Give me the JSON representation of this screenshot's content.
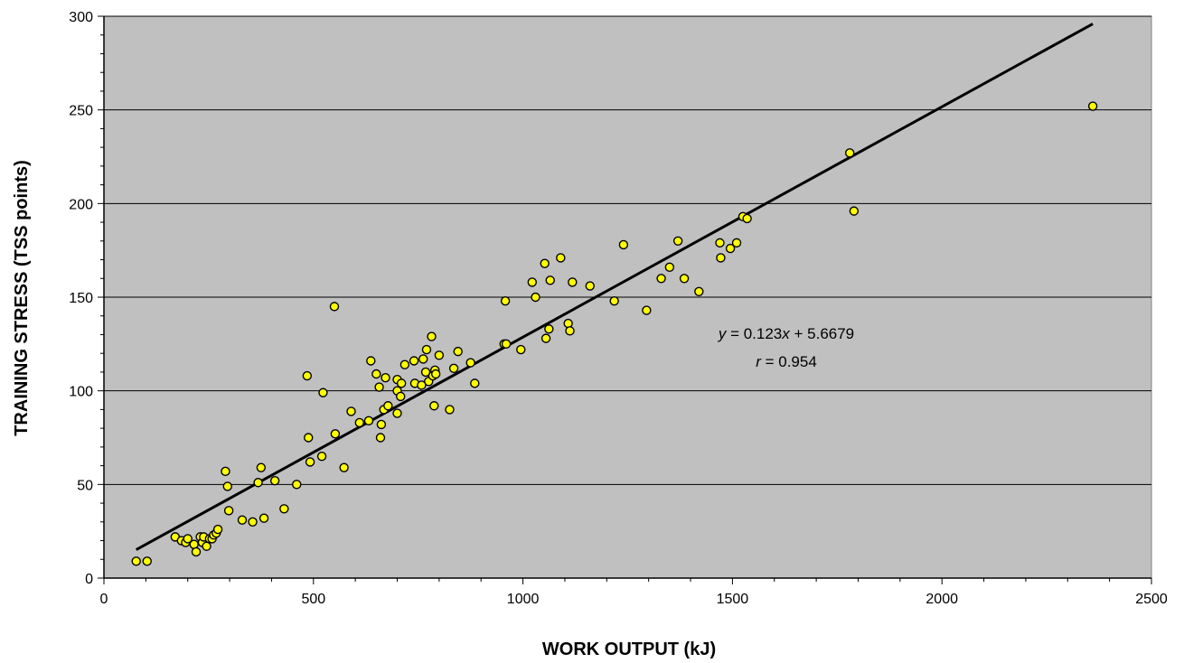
{
  "chart_data": {
    "type": "scatter",
    "title": "",
    "xlabel": "WORK OUTPUT (kJ)",
    "ylabel": "TRAINING STRESS (TSS points)",
    "xlim": [
      0,
      2500
    ],
    "ylim": [
      0,
      300
    ],
    "x_ticks": [
      0,
      500,
      1000,
      1500,
      2000,
      2500
    ],
    "y_ticks": [
      0,
      50,
      100,
      150,
      200,
      250,
      300
    ],
    "x_tick_labels": [
      "0",
      "500",
      "1000",
      "1500",
      "2000",
      "2500"
    ],
    "y_tick_labels": [
      "0",
      "50",
      "100",
      "150",
      "200",
      "250",
      "300"
    ],
    "grid": "horizontal",
    "plot_background": "#c0c0c0",
    "marker_color": "#ffff00",
    "marker_edge": "#000000",
    "trendline": {
      "slope": 0.123,
      "intercept": 5.6679,
      "x_range": [
        77,
        2360
      ]
    },
    "annotation": {
      "eq_y": "y",
      "eq_mid": " = 0.123",
      "eq_x": "x",
      "eq_end": " + 5.6679",
      "r_var": "r",
      "r_end": " = 0.954"
    },
    "points": [
      [
        77,
        9
      ],
      [
        103,
        9
      ],
      [
        170,
        22
      ],
      [
        185,
        20
      ],
      [
        195,
        19
      ],
      [
        200,
        21
      ],
      [
        215,
        18
      ],
      [
        220,
        14
      ],
      [
        230,
        22
      ],
      [
        235,
        19
      ],
      [
        238,
        22
      ],
      [
        245,
        17
      ],
      [
        252,
        21
      ],
      [
        258,
        21
      ],
      [
        262,
        23
      ],
      [
        268,
        24
      ],
      [
        272,
        26
      ],
      [
        290,
        57
      ],
      [
        295,
        49
      ],
      [
        298,
        36
      ],
      [
        330,
        31
      ],
      [
        355,
        30
      ],
      [
        368,
        51
      ],
      [
        375,
        59
      ],
      [
        382,
        32
      ],
      [
        408,
        52
      ],
      [
        430,
        37
      ],
      [
        460,
        50
      ],
      [
        485,
        108
      ],
      [
        488,
        75
      ],
      [
        492,
        62
      ],
      [
        520,
        65
      ],
      [
        523,
        99
      ],
      [
        550,
        145
      ],
      [
        552,
        77
      ],
      [
        573,
        59
      ],
      [
        590,
        89
      ],
      [
        610,
        83
      ],
      [
        632,
        84
      ],
      [
        637,
        116
      ],
      [
        650,
        109
      ],
      [
        657,
        102
      ],
      [
        660,
        75
      ],
      [
        662,
        82
      ],
      [
        668,
        90
      ],
      [
        672,
        107
      ],
      [
        678,
        92
      ],
      [
        700,
        88
      ],
      [
        700,
        106
      ],
      [
        700,
        100
      ],
      [
        708,
        97
      ],
      [
        710,
        104
      ],
      [
        718,
        114
      ],
      [
        740,
        116
      ],
      [
        742,
        104
      ],
      [
        758,
        103
      ],
      [
        762,
        117
      ],
      [
        768,
        110
      ],
      [
        770,
        122
      ],
      [
        775,
        105
      ],
      [
        782,
        129
      ],
      [
        785,
        108
      ],
      [
        788,
        92
      ],
      [
        790,
        111
      ],
      [
        792,
        109
      ],
      [
        800,
        119
      ],
      [
        825,
        90
      ],
      [
        835,
        112
      ],
      [
        845,
        121
      ],
      [
        875,
        115
      ],
      [
        885,
        104
      ],
      [
        955,
        125
      ],
      [
        958,
        148
      ],
      [
        960,
        125
      ],
      [
        995,
        122
      ],
      [
        1022,
        158
      ],
      [
        1030,
        150
      ],
      [
        1052,
        168
      ],
      [
        1055,
        128
      ],
      [
        1062,
        133
      ],
      [
        1065,
        159
      ],
      [
        1090,
        171
      ],
      [
        1108,
        136
      ],
      [
        1112,
        132
      ],
      [
        1118,
        158
      ],
      [
        1160,
        156
      ],
      [
        1218,
        148
      ],
      [
        1240,
        178
      ],
      [
        1295,
        143
      ],
      [
        1330,
        160
      ],
      [
        1350,
        166
      ],
      [
        1370,
        180
      ],
      [
        1385,
        160
      ],
      [
        1420,
        153
      ],
      [
        1470,
        179
      ],
      [
        1472,
        171
      ],
      [
        1495,
        176
      ],
      [
        1510,
        179
      ],
      [
        1525,
        193
      ],
      [
        1535,
        192
      ],
      [
        1780,
        227
      ],
      [
        1790,
        196
      ],
      [
        2360,
        252
      ]
    ]
  }
}
